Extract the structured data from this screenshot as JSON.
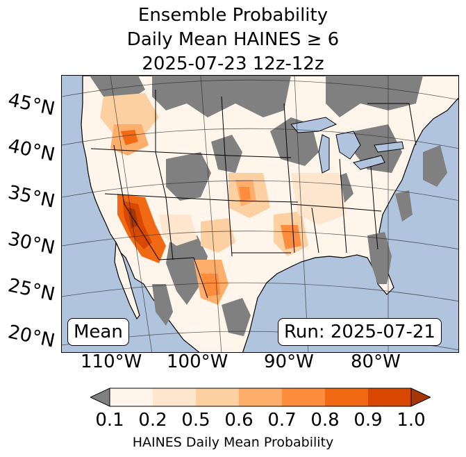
{
  "title": {
    "line1": "Ensemble Probability",
    "line2": "Daily Mean HAINES ≥ 6",
    "line3": "2025-07-23 12z-12z"
  },
  "map": {
    "latitude_labels": [
      "45°N",
      "40°N",
      "35°N",
      "30°N",
      "25°N",
      "20°N"
    ],
    "longitude_labels": [
      "110°W",
      "100°W",
      "90°W",
      "80°W"
    ],
    "ocean_color": "#b0c4de",
    "no_data_color": "#808080",
    "land_low_color": "#fff5eb"
  },
  "panels": {
    "mean_label": "Mean",
    "run_label": "Run: 2025-07-21"
  },
  "colorbar": {
    "ticks": [
      "0.1",
      "0.2",
      "0.5",
      "0.6",
      "0.7",
      "0.8",
      "0.9",
      "1.0"
    ],
    "colors": [
      "#fff5eb",
      "#fee6ce",
      "#fdd0a2",
      "#fdae6b",
      "#fd8d3c",
      "#f16913",
      "#d94801",
      "#a63603"
    ],
    "under_color": "#808080",
    "label": "HAINES Daily Mean Probability"
  }
}
